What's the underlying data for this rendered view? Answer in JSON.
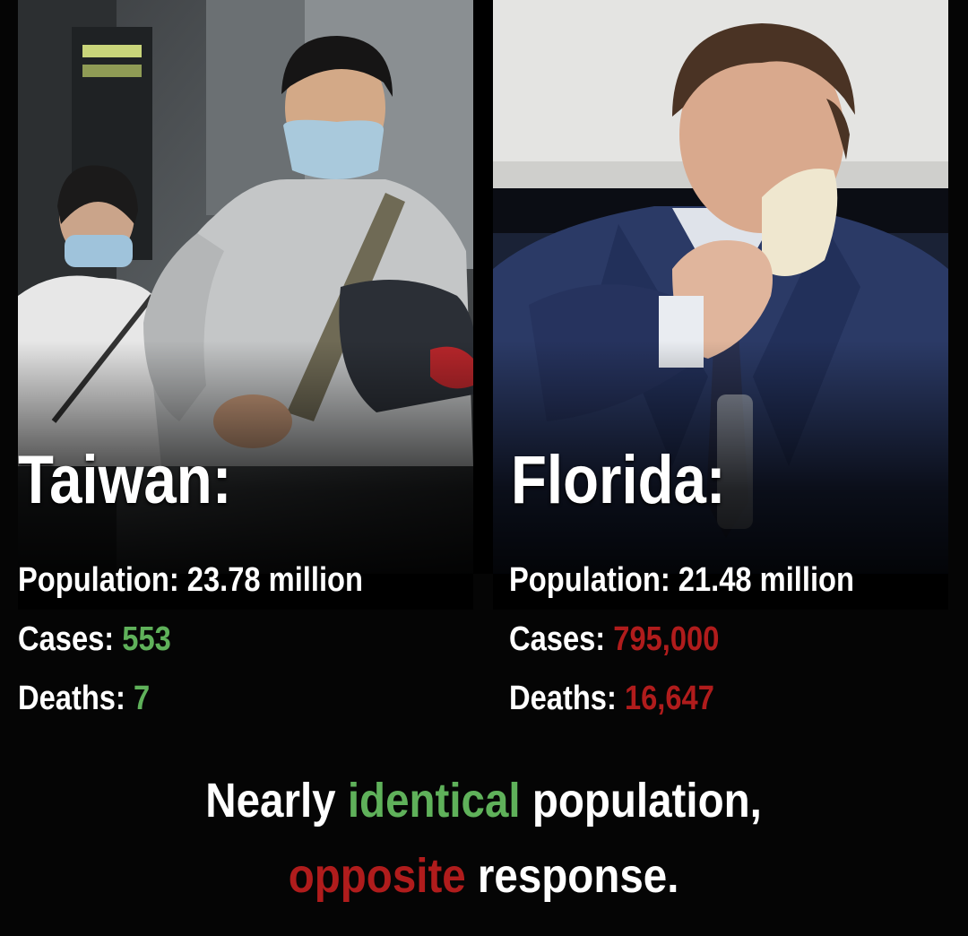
{
  "colors": {
    "good": "#5fb15a",
    "bad": "#b01c1c",
    "background": "#000000"
  },
  "left": {
    "place": "Taiwan:",
    "population_label": "Population:",
    "population_value": "23.78 million",
    "cases_label": "Cases:",
    "cases_value": "553",
    "deaths_label": "Deaths:",
    "deaths_value": "7"
  },
  "right": {
    "place": "Florida:",
    "population_label": "Population:",
    "population_value": "21.48 million",
    "cases_label": "Cases:",
    "cases_value": "795,000",
    "deaths_label": "Deaths:",
    "deaths_value": "16,647"
  },
  "tagline": {
    "line1_a": "Nearly",
    "line1_b": "identical",
    "line1_c": "population,",
    "line2_a": "opposite",
    "line2_b": "response."
  }
}
